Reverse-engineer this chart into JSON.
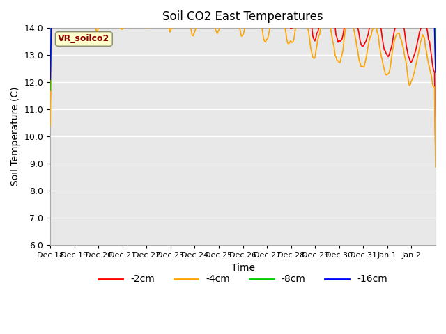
{
  "title": "Soil CO2 East Temperatures",
  "xlabel": "Time",
  "ylabel": "Soil Temperature (C)",
  "ylim": [
    6.0,
    14.0
  ],
  "yticks": [
    6.0,
    7.0,
    8.0,
    9.0,
    10.0,
    11.0,
    12.0,
    13.0,
    14.0
  ],
  "colors": {
    "-2cm": "#ff0000",
    "-4cm": "#ffa500",
    "-8cm": "#00cc00",
    "-16cm": "#0000ff"
  },
  "legend_label": "VR_soilco2",
  "legend_label_color": "#8b0000",
  "legend_box_color": "#ffffcc",
  "bg_color": "#e8e8e8",
  "line_width": 1.2,
  "x_labels": [
    "Dec 18",
    "Dec 19",
    "Dec 20",
    "Dec 21",
    "Dec 22",
    "Dec 23",
    "Dec 24",
    "Dec 25",
    "Dec 26",
    "Dec 27",
    "Dec 28",
    "Dec 29",
    "Dec 30",
    "Dec 31",
    "Jan 1",
    "Jan 2"
  ],
  "x_label_short": [
    "Dec 18",
    "Dec 19",
    "Dec 20",
    "Dec 21",
    "Dec 22",
    "Dec 23",
    "Dec 24",
    "Dec 25",
    "Dec 26",
    "Dec 27",
    "Dec 28",
    "Dec 29",
    "Dec 30",
    "Dec 31",
    "Jan 1",
    "Jan 2"
  ]
}
